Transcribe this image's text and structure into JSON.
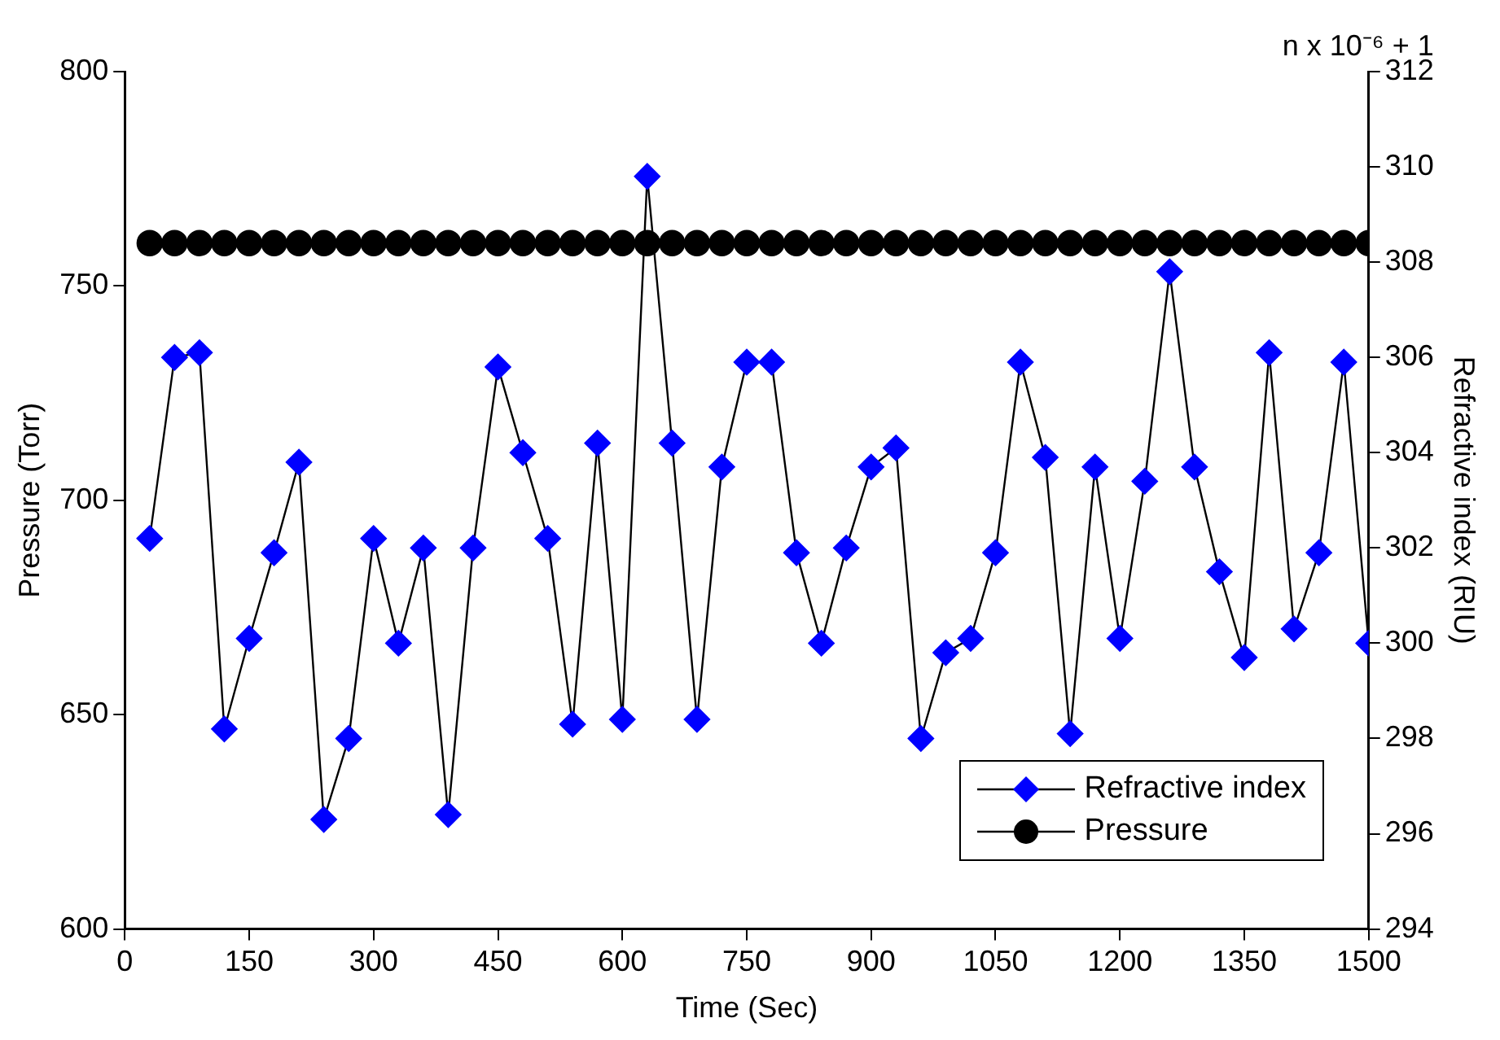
{
  "chart_data": {
    "type": "line",
    "xlabel": "Time (Sec)",
    "ylabel": "Pressure (Torr)",
    "y2label": "Refractive index (RIU)",
    "annotations": [
      "n x 10⁻⁶ + 1"
    ],
    "x": [
      30,
      60,
      90,
      120,
      150,
      180,
      210,
      240,
      270,
      300,
      330,
      360,
      390,
      420,
      450,
      480,
      510,
      540,
      570,
      600,
      630,
      660,
      690,
      720,
      750,
      780,
      810,
      840,
      870,
      900,
      930,
      960,
      990,
      1020,
      1050,
      1080,
      1110,
      1140,
      1170,
      1200,
      1230,
      1260,
      1290,
      1320,
      1350,
      1380,
      1410,
      1440,
      1470,
      1500
    ],
    "series": [
      {
        "name": "Refractive index",
        "color": "#0000ff",
        "axis": "y2",
        "marker": "diamond",
        "values": [
          302.2,
          306.0,
          306.1,
          298.2,
          300.1,
          301.9,
          303.8,
          296.3,
          298.0,
          302.2,
          300.0,
          302.0,
          296.4,
          302.0,
          305.8,
          304.0,
          302.2,
          298.3,
          304.2,
          298.4,
          309.8,
          304.2,
          298.4,
          303.7,
          305.9,
          305.9,
          301.9,
          300.0,
          302.0,
          303.7,
          304.1,
          298.0,
          299.8,
          300.1,
          301.9,
          305.9,
          303.9,
          298.1,
          303.7,
          300.1,
          303.4,
          307.8,
          303.7,
          301.5,
          299.7,
          306.1,
          300.3,
          301.9,
          305.9,
          300.0
        ]
      },
      {
        "name": "Pressure",
        "type": "scatter",
        "color": "#000000",
        "marker": "circle",
        "values": [
          760,
          760,
          760,
          760,
          760,
          760,
          760,
          760,
          760,
          760,
          760,
          760,
          760,
          760,
          760,
          760,
          760,
          760,
          760,
          760,
          760,
          760,
          760,
          760,
          760,
          760,
          760,
          760,
          760,
          760,
          760,
          760,
          760,
          760,
          760,
          760,
          760,
          760,
          760,
          760,
          760,
          760,
          760,
          760,
          760,
          760,
          760,
          760,
          760,
          760
        ]
      }
    ],
    "xlim": [
      0,
      1500
    ],
    "xticks": [
      0,
      150,
      300,
      450,
      600,
      750,
      900,
      1050,
      1200,
      1350,
      1500
    ],
    "ylim": [
      600,
      800
    ],
    "yticks": [
      600,
      650,
      700,
      750,
      800
    ],
    "y2lim": [
      294,
      312
    ],
    "y2ticks": [
      294,
      296,
      298,
      300,
      302,
      304,
      306,
      308,
      310,
      312
    ],
    "grid": false,
    "legend": "bottom right",
    "line_style": "solid"
  }
}
